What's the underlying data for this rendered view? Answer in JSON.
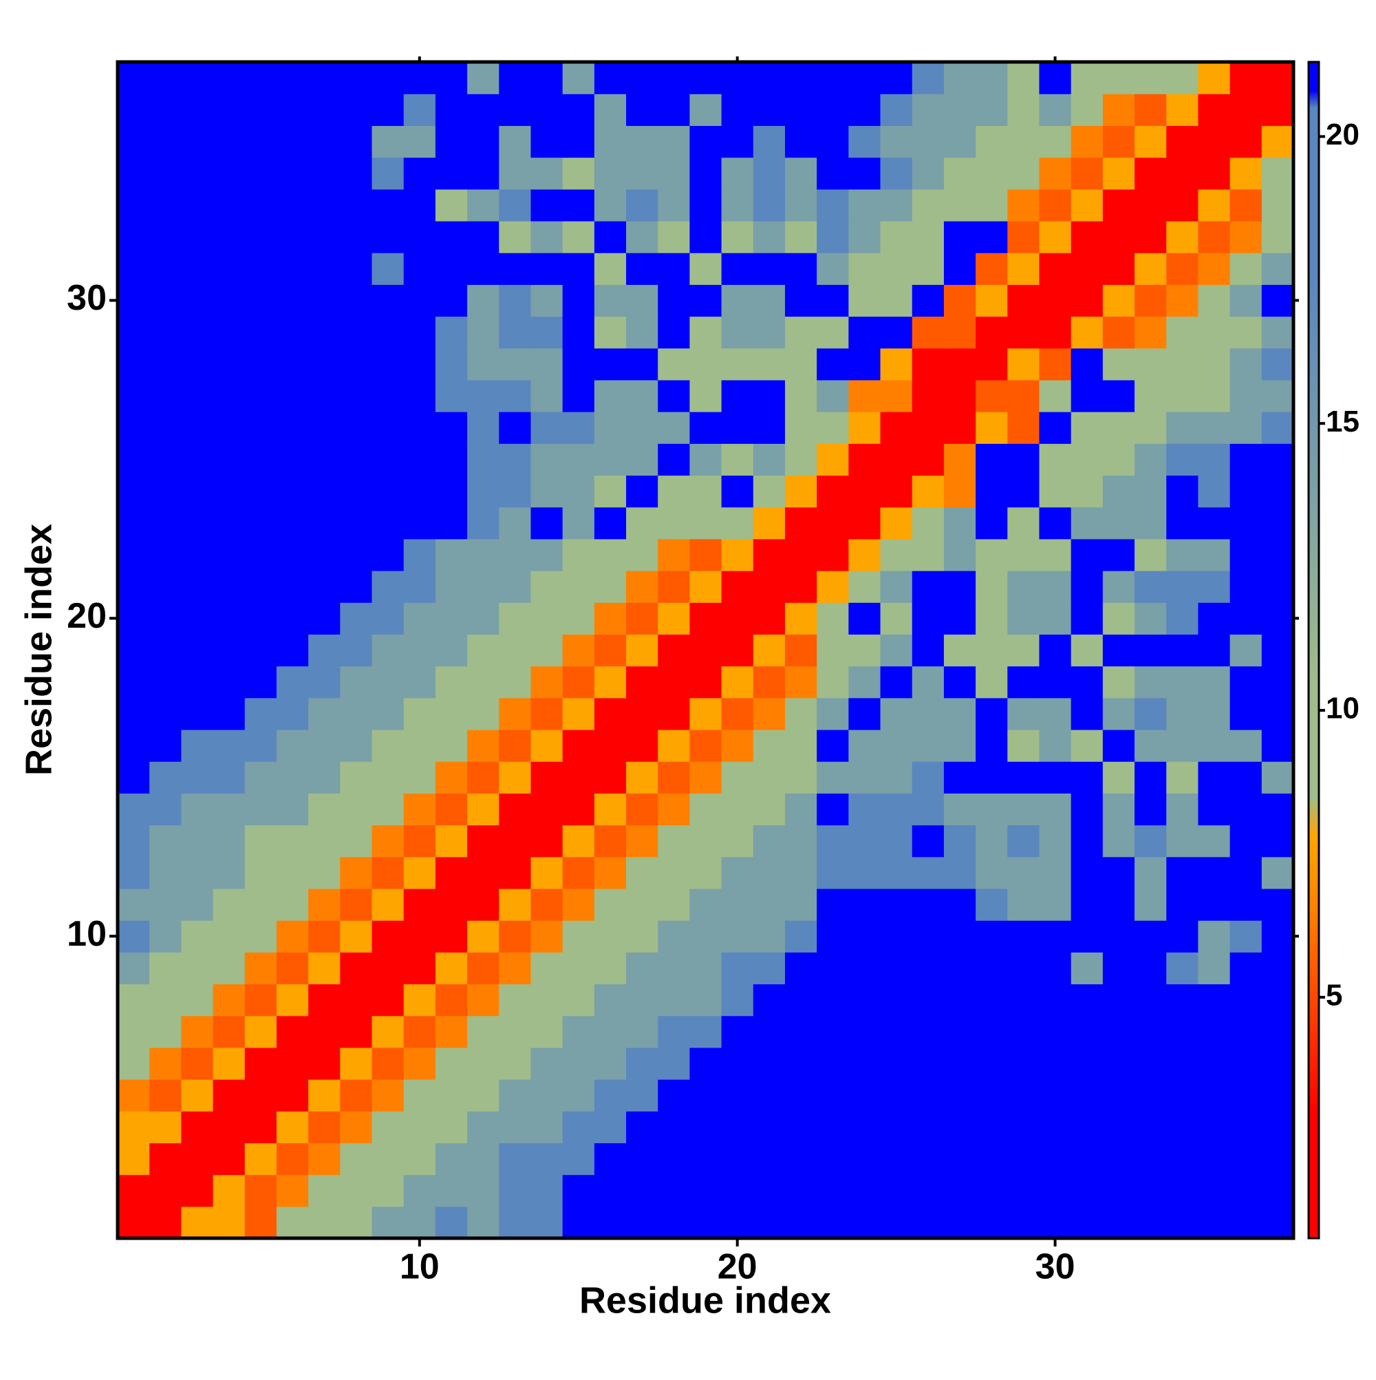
{
  "chart_data": {
    "type": "heatmap",
    "x_label": "Residue index",
    "y_label": "Residue index",
    "x": [
      1,
      2,
      3,
      4,
      5,
      6,
      7,
      8,
      9,
      10,
      11,
      12,
      13,
      14,
      15,
      16,
      17,
      18,
      19,
      20,
      21,
      22,
      23,
      24,
      25,
      26,
      27,
      28,
      29,
      30,
      31,
      32,
      33,
      34,
      35,
      36,
      37
    ],
    "y": [
      1,
      2,
      3,
      4,
      5,
      6,
      7,
      8,
      9,
      10,
      11,
      12,
      13,
      14,
      15,
      16,
      17,
      18,
      19,
      20,
      21,
      22,
      23,
      24,
      25,
      26,
      27,
      28,
      29,
      30,
      31,
      32,
      33,
      34,
      35,
      36,
      37
    ],
    "xlim": [
      0.5,
      37.5
    ],
    "ylim": [
      0.5,
      37.5
    ],
    "xticks": [
      10,
      20,
      30
    ],
    "yticks": [
      10,
      20,
      30
    ],
    "zlim": [
      0.8,
      21.3
    ],
    "zticks": [
      5,
      10,
      15,
      20
    ],
    "colorscale": [
      [
        0.8,
        "#ff0000"
      ],
      [
        3,
        "#ff0000"
      ],
      [
        5.5,
        "#ff5a00"
      ],
      [
        6.5,
        "#ff8000"
      ],
      [
        7.8,
        "#ffa500"
      ],
      [
        8.5,
        "#a0bc8a"
      ],
      [
        10.5,
        "#a0bc8a"
      ],
      [
        14,
        "#7aa0a8"
      ],
      [
        17.5,
        "#5a87be"
      ],
      [
        20.5,
        "#5a87be"
      ],
      [
        20.8,
        "#0000ff"
      ],
      [
        21.3,
        "#0000ff"
      ]
    ],
    "values": [
      [
        3,
        3,
        7.8,
        7.8,
        5.5,
        10.5,
        10.5,
        10.5,
        14,
        14,
        17.5,
        14,
        17.5,
        17.5,
        21,
        21,
        21,
        21,
        21,
        21,
        21,
        21,
        21,
        21,
        21,
        21,
        21,
        21,
        21,
        21,
        21,
        21,
        21,
        21,
        21,
        21,
        21
      ],
      [
        3,
        3,
        3,
        7.8,
        5.5,
        6.5,
        10.5,
        10.5,
        10.5,
        14,
        14,
        14,
        17.5,
        17.5,
        21,
        21,
        21,
        21,
        21,
        21,
        21,
        21,
        21,
        21,
        21,
        21,
        21,
        21,
        21,
        21,
        21,
        21,
        21,
        21,
        21,
        21,
        21
      ],
      [
        7.8,
        3,
        3,
        3,
        7.8,
        5.5,
        6.5,
        10.5,
        10.5,
        10.5,
        14,
        14,
        17.5,
        17.5,
        17.5,
        21,
        21,
        21,
        21,
        21,
        21,
        21,
        21,
        21,
        21,
        21,
        21,
        21,
        21,
        21,
        21,
        21,
        21,
        21,
        21,
        21,
        21
      ],
      [
        7.8,
        7.8,
        3,
        3,
        3,
        7.8,
        5.5,
        6.5,
        10.5,
        10.5,
        10.5,
        14,
        14,
        14,
        17.5,
        17.5,
        21,
        21,
        21,
        21,
        21,
        21,
        21,
        21,
        21,
        21,
        21,
        21,
        21,
        21,
        21,
        21,
        21,
        21,
        21,
        21,
        21
      ],
      [
        6.5,
        5.5,
        7.8,
        3,
        3,
        3,
        7.8,
        5.5,
        6.5,
        10.5,
        10.5,
        10.5,
        14,
        14,
        14,
        17.5,
        17.5,
        21,
        21,
        21,
        21,
        21,
        21,
        21,
        21,
        21,
        21,
        21,
        21,
        21,
        21,
        21,
        21,
        21,
        21,
        21,
        21
      ],
      [
        10.5,
        6.5,
        5.5,
        7.8,
        3,
        3,
        3,
        7.8,
        5.5,
        6.5,
        10.5,
        10.5,
        10.5,
        14,
        14,
        14,
        17.5,
        17.5,
        21,
        21,
        21,
        21,
        21,
        21,
        21,
        21,
        21,
        21,
        21,
        21,
        21,
        21,
        21,
        21,
        21,
        21,
        21
      ],
      [
        10.5,
        10.5,
        6.5,
        5.5,
        7.8,
        3,
        3,
        3,
        7.8,
        5.5,
        6.5,
        10.5,
        10.5,
        10.5,
        14,
        14,
        14,
        17.5,
        17.5,
        21,
        21,
        21,
        21,
        21,
        21,
        21,
        21,
        21,
        21,
        21,
        21,
        21,
        21,
        21,
        21,
        21,
        21
      ],
      [
        10.5,
        10.5,
        10.5,
        6.5,
        5.5,
        7.8,
        3,
        3,
        3,
        7.8,
        5.5,
        6.5,
        10.5,
        10.5,
        10.5,
        14,
        14,
        14,
        14,
        17.5,
        21,
        21,
        21,
        21,
        21,
        21,
        21,
        21,
        21,
        21,
        21,
        21,
        21,
        21,
        21,
        21,
        21
      ],
      [
        14,
        10.5,
        10.5,
        10.5,
        6.5,
        5.5,
        7.8,
        3,
        3,
        3,
        7.8,
        5.5,
        6.5,
        10.5,
        10.5,
        10.5,
        14,
        14,
        14,
        17.5,
        17.5,
        21,
        21,
        21,
        21,
        21,
        21,
        21,
        21,
        21,
        14,
        21,
        21,
        17.5,
        14,
        21,
        21
      ],
      [
        17.5,
        14,
        10.5,
        10.5,
        10.5,
        6.5,
        5.5,
        7.8,
        3,
        3,
        3,
        7.8,
        5.5,
        6.5,
        10.5,
        10.5,
        10.5,
        14,
        14,
        14,
        14,
        17.5,
        21,
        21,
        21,
        21,
        21,
        21,
        21,
        21,
        21,
        21,
        21,
        21,
        14,
        17.5,
        21
      ],
      [
        14,
        14,
        14,
        10.5,
        10.5,
        10.5,
        6.5,
        5.5,
        7.8,
        3,
        3,
        3,
        7.8,
        5.5,
        6.5,
        10.5,
        10.5,
        10.5,
        14,
        14,
        14,
        14,
        21,
        21,
        21,
        21,
        21,
        17.5,
        14,
        14,
        21,
        21,
        14,
        21,
        21,
        21,
        21
      ],
      [
        17.5,
        14,
        14,
        14,
        10.5,
        10.5,
        10.5,
        6.5,
        5.5,
        7.8,
        3,
        3,
        3,
        7.8,
        5.5,
        6.5,
        10.5,
        10.5,
        10.5,
        14,
        14,
        14,
        17.5,
        17.5,
        17.5,
        17.5,
        17.5,
        14,
        14,
        14,
        21,
        21,
        14,
        21,
        21,
        21,
        14
      ],
      [
        17.5,
        14,
        14,
        14,
        10.5,
        10.5,
        10.5,
        10.5,
        6.5,
        5.5,
        7.8,
        3,
        3,
        3,
        7.8,
        5.5,
        6.5,
        10.5,
        10.5,
        10.5,
        14,
        14,
        17.5,
        17.5,
        17.5,
        21,
        17.5,
        14,
        17.5,
        14,
        21,
        14,
        17.5,
        14,
        14,
        21,
        21
      ],
      [
        17.5,
        17.5,
        14,
        14,
        14,
        14,
        10.5,
        10.5,
        10.5,
        6.5,
        5.5,
        7.8,
        3,
        3,
        3,
        7.8,
        5.5,
        6.5,
        10.5,
        10.5,
        10.5,
        14,
        21,
        17.5,
        17.5,
        17.5,
        14,
        14,
        14,
        14,
        21,
        14,
        21,
        14,
        21,
        21,
        21
      ],
      [
        21,
        17.5,
        17.5,
        17.5,
        14,
        14,
        14,
        10.5,
        10.5,
        10.5,
        6.5,
        5.5,
        7.8,
        3,
        3,
        3,
        7.8,
        5.5,
        6.5,
        10.5,
        10.5,
        10.5,
        14,
        14,
        14,
        17.5,
        21,
        21,
        21,
        21,
        21,
        10.5,
        21,
        10.5,
        21,
        21,
        14
      ],
      [
        21,
        21,
        17.5,
        17.5,
        17.5,
        14,
        14,
        14,
        10.5,
        10.5,
        10.5,
        6.5,
        5.5,
        7.8,
        3,
        3,
        3,
        7.8,
        5.5,
        6.5,
        10.5,
        10.5,
        21,
        14,
        14,
        14,
        14,
        21,
        10.5,
        14,
        10.5,
        21,
        14,
        14,
        14,
        14,
        21
      ],
      [
        21,
        21,
        21,
        21,
        17.5,
        17.5,
        14,
        14,
        14,
        10.5,
        10.5,
        10.5,
        6.5,
        5.5,
        7.8,
        3,
        3,
        3,
        7.8,
        5.5,
        6.5,
        10.5,
        14,
        21,
        14,
        14,
        14,
        21,
        14,
        14,
        21,
        14,
        17.5,
        14,
        14,
        21,
        21
      ],
      [
        21,
        21,
        21,
        21,
        21,
        17.5,
        17.5,
        14,
        14,
        14,
        10.5,
        10.5,
        10.5,
        6.5,
        5.5,
        7.8,
        3,
        3,
        3,
        7.8,
        5.5,
        6.5,
        10.5,
        14,
        21,
        14,
        21,
        10.5,
        21,
        21,
        21,
        10.5,
        14,
        14,
        14,
        21,
        21
      ],
      [
        21,
        21,
        21,
        21,
        21,
        21,
        17.5,
        17.5,
        14,
        14,
        14,
        10.5,
        10.5,
        10.5,
        6.5,
        5.5,
        7.8,
        3,
        3,
        3,
        7.8,
        5.5,
        10.5,
        10.5,
        14,
        21,
        10.5,
        10.5,
        10.5,
        21,
        10.5,
        21,
        21,
        21,
        21,
        14,
        21
      ],
      [
        21,
        21,
        21,
        21,
        21,
        21,
        21,
        17.5,
        17.5,
        14,
        14,
        14,
        10.5,
        10.5,
        10.5,
        6.5,
        5.5,
        7.8,
        3,
        3,
        3,
        7.8,
        10.5,
        21,
        10.5,
        21,
        21,
        10.5,
        14,
        14,
        21,
        10.5,
        14,
        17.5,
        21,
        21,
        21
      ],
      [
        21,
        21,
        21,
        21,
        21,
        21,
        21,
        21,
        17.5,
        17.5,
        14,
        14,
        14,
        10.5,
        10.5,
        10.5,
        6.5,
        5.5,
        7.8,
        3,
        3,
        3,
        7.8,
        10.5,
        14,
        21,
        21,
        10.5,
        14,
        14,
        21,
        14,
        17.5,
        17.5,
        17.5,
        21,
        21
      ],
      [
        21,
        21,
        21,
        21,
        21,
        21,
        21,
        21,
        21,
        17.5,
        14,
        14,
        14,
        14,
        10.5,
        10.5,
        10.5,
        6.5,
        5.5,
        7.8,
        3,
        3,
        3,
        7.8,
        10.5,
        10.5,
        14,
        10.5,
        10.5,
        10.5,
        21,
        21,
        10.5,
        14,
        14,
        21,
        21
      ],
      [
        21,
        21,
        21,
        21,
        21,
        21,
        21,
        21,
        21,
        21,
        21,
        17.5,
        14,
        21,
        14,
        21,
        10.5,
        10.5,
        10.5,
        10.5,
        7.8,
        3,
        3,
        3,
        7.8,
        10.5,
        14,
        21,
        10.5,
        21,
        14,
        14,
        14,
        21,
        21,
        21,
        21
      ],
      [
        21,
        21,
        21,
        21,
        21,
        21,
        21,
        21,
        21,
        21,
        21,
        17.5,
        17.5,
        14,
        14,
        10.5,
        21,
        10.5,
        10.5,
        21,
        10.5,
        7.8,
        3,
        3,
        3,
        7.8,
        6.5,
        21,
        21,
        10.5,
        10.5,
        14,
        14,
        21,
        17.5,
        21,
        21
      ],
      [
        21,
        21,
        21,
        21,
        21,
        21,
        21,
        21,
        21,
        21,
        21,
        17.5,
        17.5,
        14,
        14,
        14,
        14,
        21,
        14,
        10.5,
        14,
        10.5,
        7.8,
        3,
        3,
        3,
        6.5,
        21,
        21,
        10.5,
        10.5,
        10.5,
        14,
        17.5,
        17.5,
        21,
        21
      ],
      [
        21,
        21,
        21,
        21,
        21,
        21,
        21,
        21,
        21,
        21,
        21,
        17.5,
        21,
        17.5,
        17.5,
        14,
        14,
        14,
        21,
        21,
        21,
        10.5,
        10.5,
        7.8,
        3,
        3,
        3,
        7.8,
        5.5,
        21,
        10.5,
        10.5,
        10.5,
        14,
        14,
        14,
        17.5
      ],
      [
        21,
        21,
        21,
        21,
        21,
        21,
        21,
        21,
        21,
        21,
        17.5,
        17.5,
        17.5,
        14,
        21,
        14,
        14,
        21,
        10.5,
        21,
        21,
        10.5,
        14,
        6.5,
        6.5,
        3,
        3,
        5.5,
        5.5,
        10.5,
        21,
        21,
        10.5,
        10.5,
        10.5,
        14,
        14
      ],
      [
        21,
        21,
        21,
        21,
        21,
        21,
        21,
        21,
        21,
        21,
        17.5,
        14,
        14,
        14,
        21,
        21,
        21,
        10.5,
        10.5,
        10.5,
        10.5,
        10.5,
        21,
        21,
        7.8,
        3,
        3,
        3,
        7.8,
        5.5,
        21,
        10.5,
        10.5,
        10.5,
        10.5,
        14,
        17.5
      ],
      [
        21,
        21,
        21,
        21,
        21,
        21,
        21,
        21,
        21,
        21,
        17.5,
        14,
        17.5,
        17.5,
        21,
        10.5,
        14,
        21,
        10.5,
        14,
        14,
        10.5,
        10.5,
        21,
        21,
        5.5,
        5.5,
        3,
        3,
        3,
        7.8,
        5.5,
        6.5,
        10.5,
        10.5,
        10.5,
        14
      ],
      [
        21,
        21,
        21,
        21,
        21,
        21,
        21,
        21,
        21,
        21,
        21,
        14,
        17.5,
        14,
        21,
        14,
        14,
        21,
        21,
        14,
        14,
        21,
        21,
        10.5,
        10.5,
        21,
        5.5,
        7.8,
        3,
        3,
        3,
        7.8,
        5.5,
        6.5,
        10.5,
        14,
        21
      ],
      [
        21,
        21,
        21,
        21,
        21,
        21,
        21,
        21,
        17.5,
        21,
        21,
        21,
        21,
        21,
        21,
        10.5,
        21,
        21,
        10.5,
        21,
        21,
        21,
        14,
        10.5,
        10.5,
        10.5,
        21,
        5.5,
        7.8,
        3,
        3,
        3,
        7.8,
        5.5,
        6.5,
        10.5,
        14
      ],
      [
        21,
        21,
        21,
        21,
        21,
        21,
        21,
        21,
        21,
        21,
        21,
        21,
        10.5,
        14,
        10.5,
        21,
        14,
        10.5,
        21,
        10.5,
        14,
        10.5,
        17.5,
        14,
        10.5,
        10.5,
        21,
        21,
        5.5,
        7.8,
        3,
        3,
        3,
        7.8,
        5.5,
        6.5,
        10.5
      ],
      [
        21,
        21,
        21,
        21,
        21,
        21,
        21,
        21,
        21,
        21,
        10.5,
        14,
        17.5,
        21,
        21,
        14,
        17.5,
        14,
        21,
        14,
        17.5,
        14,
        17.5,
        14,
        14,
        10.5,
        10.5,
        10.5,
        6.5,
        5.5,
        7.8,
        3,
        3,
        3,
        7.8,
        5.5,
        10.5
      ],
      [
        21,
        21,
        21,
        21,
        21,
        21,
        21,
        21,
        17.5,
        21,
        21,
        21,
        14,
        14,
        10.5,
        14,
        14,
        14,
        21,
        14,
        17.5,
        14,
        21,
        21,
        17.5,
        14,
        10.5,
        10.5,
        10.5,
        6.5,
        5.5,
        7.8,
        3,
        3,
        3,
        7.8,
        10.5
      ],
      [
        21,
        21,
        21,
        21,
        21,
        21,
        21,
        21,
        14,
        14,
        21,
        21,
        14,
        21,
        21,
        14,
        14,
        14,
        21,
        21,
        17.5,
        21,
        21,
        17.5,
        14,
        14,
        14,
        10.5,
        10.5,
        10.5,
        6.5,
        5.5,
        7.8,
        3,
        3,
        3,
        7.8
      ],
      [
        21,
        21,
        21,
        21,
        21,
        21,
        21,
        21,
        21,
        17.5,
        21,
        21,
        21,
        21,
        21,
        14,
        21,
        21,
        14,
        21,
        21,
        21,
        21,
        21,
        17.5,
        14,
        14,
        14,
        10.5,
        14,
        10.5,
        6.5,
        5.5,
        7.8,
        3,
        3,
        3
      ],
      [
        21,
        21,
        21,
        21,
        21,
        21,
        21,
        21,
        21,
        21,
        21,
        14,
        21,
        21,
        14,
        21,
        21,
        21,
        21,
        21,
        21,
        21,
        21,
        21,
        21,
        17.5,
        14,
        14,
        10.5,
        21,
        10.5,
        10.5,
        10.5,
        10.5,
        7.8,
        3,
        3
      ]
    ]
  }
}
